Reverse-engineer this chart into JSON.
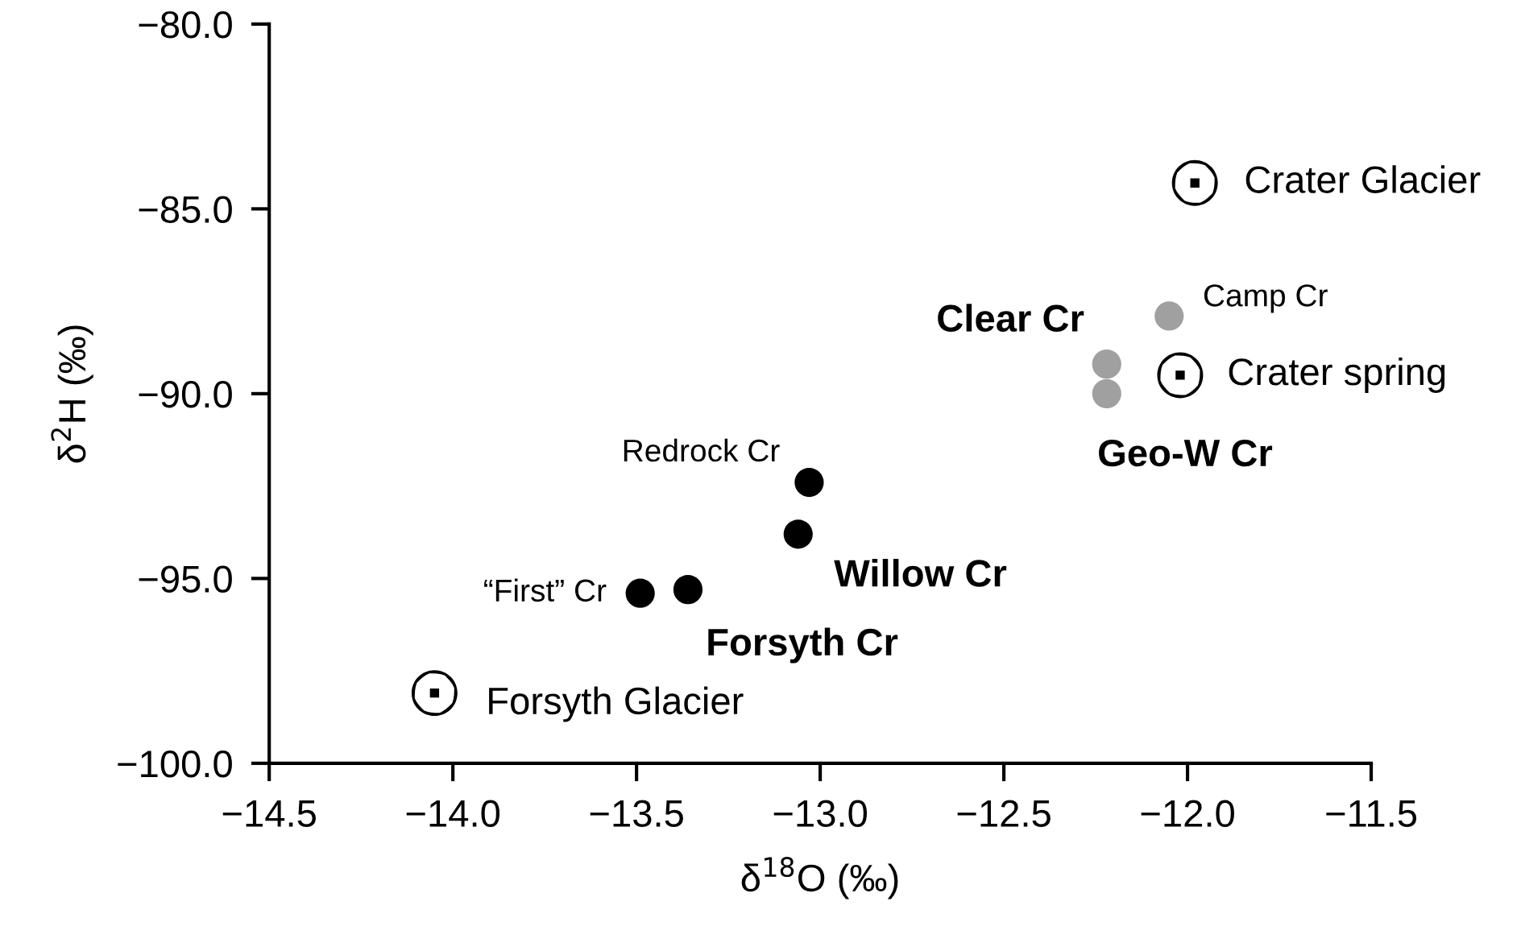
{
  "chart_data": {
    "type": "scatter",
    "xlabel": "δ$^{18}$O (‰)",
    "ylabel": "δ$^{2}$H (‰)",
    "xlim": [
      -14.5,
      -11.5
    ],
    "ylim": [
      -100,
      -80
    ],
    "xticks": [
      {
        "value": -14.5,
        "label": "−14.5"
      },
      {
        "value": -14.0,
        "label": "−14.0"
      },
      {
        "value": -13.5,
        "label": "−13.5"
      },
      {
        "value": -13.0,
        "label": "−13.0"
      },
      {
        "value": -12.5,
        "label": "−12.5"
      },
      {
        "value": -12.0,
        "label": "−12.0"
      },
      {
        "value": -11.5,
        "label": "−11.5"
      }
    ],
    "yticks": [
      {
        "value": -100,
        "label": "−100.0"
      },
      {
        "value": -95,
        "label": "−95.0"
      },
      {
        "value": -90,
        "label": "−90.0"
      },
      {
        "value": -85,
        "label": "−85.0"
      },
      {
        "value": -80,
        "label": "−80.0"
      }
    ],
    "grid": false,
    "legend": false,
    "series": [
      {
        "color": "#000000",
        "marker": "circledot",
        "x": [
          -11.98,
          -12.02,
          -14.05
        ],
        "values": [
          -84.3,
          -89.5,
          -98.1
        ]
      },
      {
        "color": "#a0a0a0",
        "marker": "circle",
        "x": [
          -12.05,
          -12.22,
          -12.22
        ],
        "values": [
          -87.9,
          -89.2,
          -90.0
        ]
      },
      {
        "color": "#000000",
        "marker": "circle",
        "x": [
          -13.03,
          -13.06,
          -13.36,
          -13.49
        ],
        "values": [
          -92.4,
          -93.8,
          -95.3,
          -95.4
        ]
      }
    ],
    "annotations": [
      {
        "text": "Crater Glacier",
        "x": -11.98,
        "y": -84.3
      },
      {
        "text": "Camp Cr",
        "x": -12.05,
        "y": -87.9
      },
      {
        "text": "Clear Cr",
        "x": -12.22,
        "y": -89.2
      },
      {
        "text": "Geo-W Cr",
        "x": -12.22,
        "y": -90.0
      },
      {
        "text": "Crater spring",
        "x": -12.02,
        "y": -89.5
      },
      {
        "text": "Redrock Cr",
        "x": -13.03,
        "y": -92.4
      },
      {
        "text": "Willow Cr",
        "x": -13.06,
        "y": -93.8
      },
      {
        "text": "Forsyth Cr",
        "x": -13.36,
        "y": -95.3
      },
      {
        "text": "“First” Cr",
        "x": -13.49,
        "y": -95.4
      },
      {
        "text": "Forsyth Glacier",
        "x": -14.05,
        "y": -98.1
      }
    ]
  }
}
